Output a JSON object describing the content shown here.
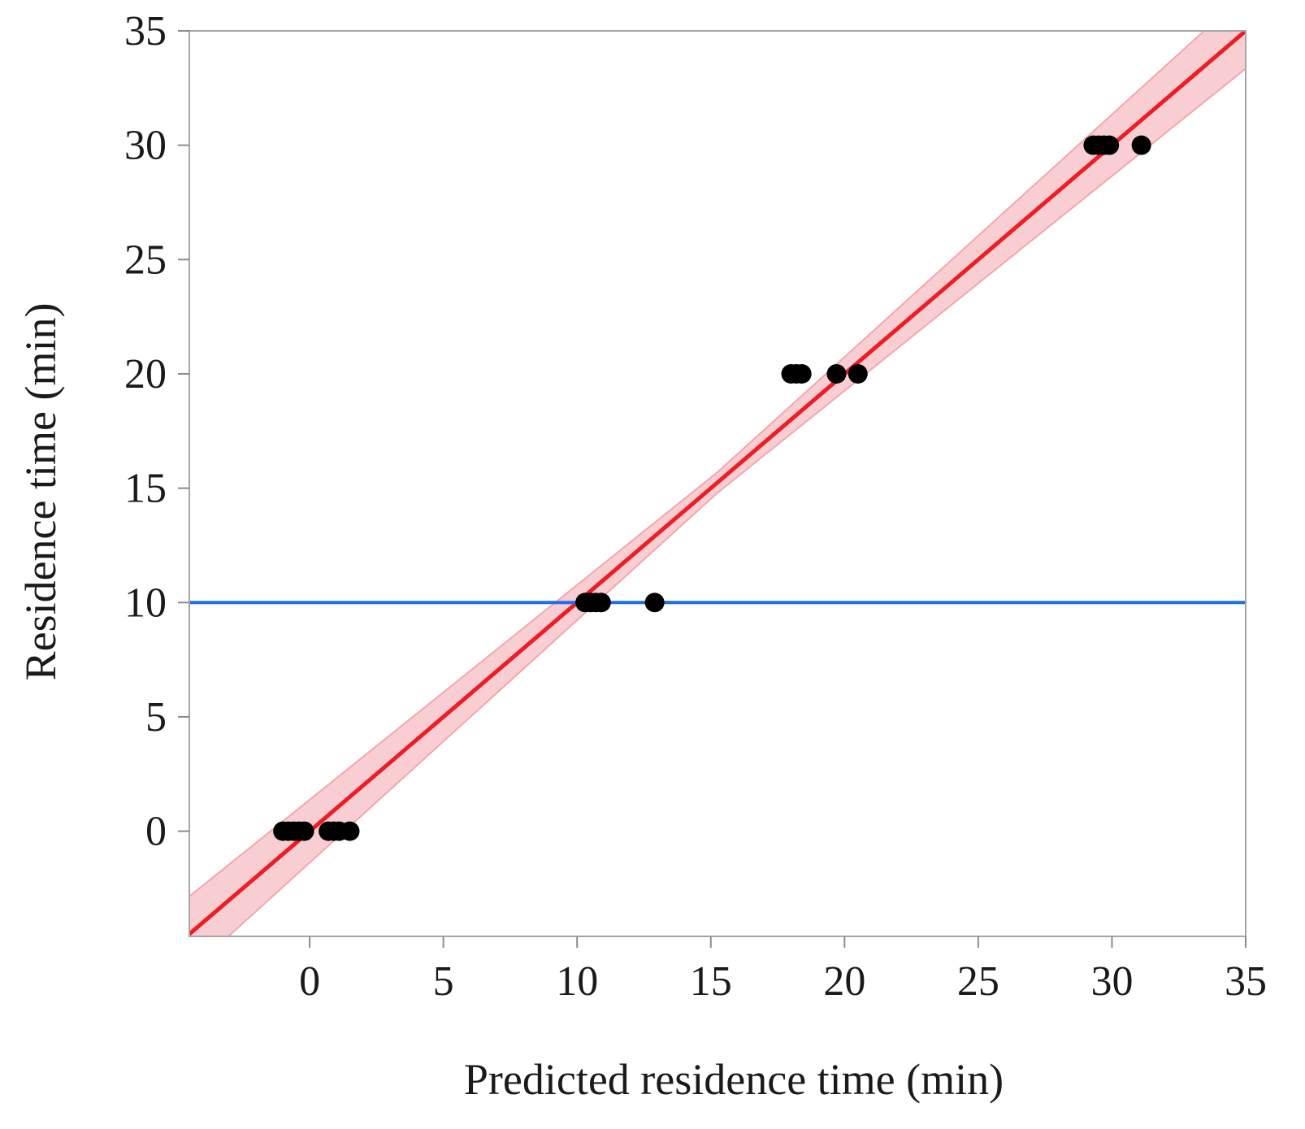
{
  "chart_data": {
    "type": "scatter",
    "title": "",
    "xlabel": "Predicted residence time (min)",
    "ylabel": "Residence time (min)",
    "xlim": [
      -4.5,
      35
    ],
    "ylim": [
      -4.6,
      35
    ],
    "xticks": [
      0,
      5,
      10,
      15,
      20,
      25,
      30,
      35
    ],
    "yticks": [
      0,
      5,
      10,
      15,
      20,
      25,
      30,
      35
    ],
    "grid": false,
    "legend": "none",
    "points": [
      {
        "x": -1.0,
        "y": 0
      },
      {
        "x": -0.8,
        "y": 0
      },
      {
        "x": -0.6,
        "y": 0
      },
      {
        "x": -0.4,
        "y": 0
      },
      {
        "x": -0.2,
        "y": 0
      },
      {
        "x": 0.7,
        "y": 0
      },
      {
        "x": 0.9,
        "y": 0
      },
      {
        "x": 1.1,
        "y": 0
      },
      {
        "x": 1.5,
        "y": 0
      },
      {
        "x": 10.3,
        "y": 10
      },
      {
        "x": 10.5,
        "y": 10
      },
      {
        "x": 10.7,
        "y": 10
      },
      {
        "x": 10.9,
        "y": 10
      },
      {
        "x": 12.9,
        "y": 10
      },
      {
        "x": 18.0,
        "y": 20
      },
      {
        "x": 18.2,
        "y": 20
      },
      {
        "x": 18.4,
        "y": 20
      },
      {
        "x": 19.7,
        "y": 20
      },
      {
        "x": 20.5,
        "y": 20
      },
      {
        "x": 29.3,
        "y": 30
      },
      {
        "x": 29.5,
        "y": 30
      },
      {
        "x": 29.7,
        "y": 30
      },
      {
        "x": 29.9,
        "y": 30
      },
      {
        "x": 31.1,
        "y": 30
      }
    ],
    "fit_line": {
      "slope": 1,
      "intercept": 0,
      "color": "#ee1c25",
      "band_color": "#f4a6ad"
    },
    "mean_line": {
      "y": 10,
      "color": "#1f6fe8"
    },
    "point_color": "#000000"
  }
}
